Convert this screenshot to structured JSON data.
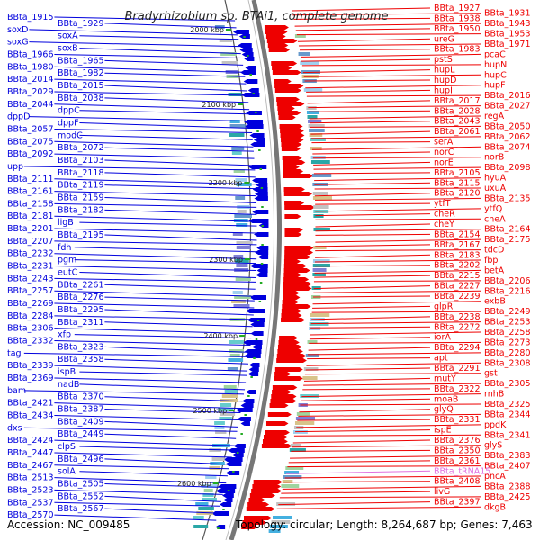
{
  "title": "Bradyrhizobium sp. BTAi1, complete genome",
  "footer": {
    "accession": "Accession: NC_009485",
    "topology": "Topology: circular; Length: 8,264,687 bp; Genes: 7,463"
  },
  "colors": {
    "left_strand": "#0000dd",
    "right_strand": "#ee0000",
    "trna": "#e070e0",
    "kbp_tick": "#22aa22",
    "backbone": "#777777"
  },
  "kbp_markers": [
    {
      "label": "2000 kbp"
    },
    {
      "label": "2100 kbp"
    },
    {
      "label": "2200 kbp"
    },
    {
      "label": "2300 kbp"
    },
    {
      "label": "2400 kbp"
    },
    {
      "label": "2500 kbp"
    },
    {
      "label": "2600 kbp"
    }
  ],
  "left_labels": [
    "BBta_1915",
    "BBta_1929",
    "soxD",
    "soxA",
    "soxG",
    "soxB",
    "BBta_1966",
    "BBta_1965",
    "BBta_1980",
    "BBta_1982",
    "BBta_2014",
    "BBta_2015",
    "BBta_2029",
    "BBta_2038",
    "BBta_2044",
    "dppC",
    "dppD",
    "dppF",
    "BBta_2057",
    "modC",
    "BBta_2075",
    "BBta_2072",
    "BBta_2092",
    "BBta_2103",
    "upp",
    "BBta_2118",
    "BBta_2111",
    "BBta_2119",
    "BBta_2161",
    "BBta_2159",
    "BBta_2158",
    "BBta_2182",
    "BBta_2181",
    "ligB",
    "BBta_2201",
    "BBta_2195",
    "BBta_2207",
    "fdh",
    "BBta_2232",
    "pgm",
    "BBta_2231",
    "eutC",
    "BBta_2243",
    "BBta_2261",
    "BBta_2257",
    "BBta_2276",
    "BBta_2269",
    "BBta_2295",
    "BBta_2284",
    "BBta_2311",
    "BBta_2306",
    "xfp",
    "BBta_2332",
    "BBta_2323",
    "tag",
    "BBta_2358",
    "BBta_2339",
    "ispB",
    "BBta_2369",
    "nadB",
    "bam",
    "BBta_2370",
    "BBta_2421",
    "BBta_2387",
    "BBta_2434",
    "BBta_2409",
    "dxs",
    "BBta_2449",
    "BBta_2424",
    "clpS",
    "BBta_2447",
    "BBta_2496",
    "BBta_2467",
    "solA",
    "BBta_2513",
    "BBta_2505",
    "BBta_2523",
    "BBta_2552",
    "BBta_2537",
    "BBta_2567",
    "BBta_2570"
  ],
  "right_labels": [
    "BBta_1927",
    "BBta_1931",
    "BBta_1938",
    "BBta_1943",
    "BBta_1950",
    "BBta_1953",
    "ureG",
    "BBta_1971",
    "BBta_1983",
    "pcaC",
    "pstS",
    "hupN",
    "hupL",
    "hupC",
    "hupD",
    "hupF",
    "hupI",
    "BBta_2016",
    "BBta_2017",
    "BBta_2027",
    "BBta_2028",
    "regA",
    "BBta_2043",
    "BBta_2050",
    "BBta_2061",
    "BBta_2062",
    "serA",
    "BBta_2074",
    "norC",
    "norB",
    "norE",
    "BBta_2098",
    "BBta_2105",
    "hyuA",
    "BBta_2115",
    "uxuA",
    "BBta_2120",
    "BBta_2135",
    "ytfT",
    "ytfQ",
    "cheR",
    "cheA",
    "cheY",
    "BBta_2164",
    "BBta_2154",
    "BBta_2175",
    "BBta_2167",
    "tdcD",
    "BBta_2183",
    "fbp",
    "BBta_2202",
    "betA",
    "BBta_2215",
    "BBta_2206",
    "BBta_2227",
    "BBta_2216",
    "BBta_2239",
    "exbB",
    "glpR",
    "BBta_2249",
    "BBta_2238",
    "BBta_2253",
    "BBta_2272",
    "BBta_2258",
    "iorA",
    "BBta_2273",
    "BBta_2294",
    "BBta_2280",
    "apt",
    "BBta_2308",
    "BBta_2291",
    "gst",
    "mutY",
    "BBta_2305",
    "BBta_2322",
    "rnhB",
    "moaB",
    "BBta_2325",
    "glyQ",
    "BBta_2344",
    "BBta_2331",
    "ppdK",
    "ispE",
    "BBta_2341",
    "BBta_2376",
    "glyS",
    "BBta_2350",
    "BBta_2383",
    "BBta_2361",
    "BBta_2407",
    "BBta_tRNA15",
    "pncA",
    "BBta_2408",
    "BBta_2388",
    "livG",
    "BBta_2425",
    "BBta_2397",
    "dkgB"
  ]
}
